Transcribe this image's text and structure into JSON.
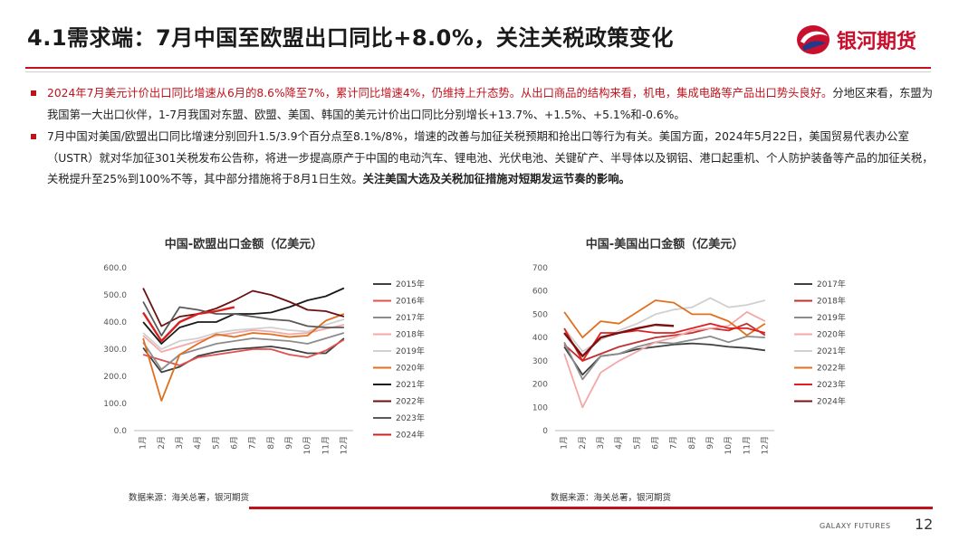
{
  "header": {
    "title": "4.1需求端：7月中国至欧盟出口同比+8.0%，关注关税政策变化",
    "logo_text": "银河期货"
  },
  "bullets": [
    {
      "parts": [
        {
          "text": "2024年7月美元计价出口同比增速从6月的8.6%降至7%，累计同比增速4%，仍维持上升态势。从出口商品的结构来看，机电，集成电路等产品出口势头良好。",
          "style": "red"
        },
        {
          "text": "分地区来看，东盟为我国第一大出口伙伴，1-7月我国对东盟、欧盟、美国、韩国的美元计价出口同比分别增长+13.7%、+1.5%、+5.1%和-0.6%。",
          "style": "normal"
        }
      ]
    },
    {
      "parts": [
        {
          "text": "7月中国对美国/欧盟出口同比增速分别回升1.5/3.9个百分点至8.1%/8%，增速的改善与加征关税预期和抢出口等行为有关。美国方面，2024年5月22日，美国贸易代表办公室（USTR）就对华加征301关税发布公告称，将进一步提高原产于中国的电动汽车、锂电池、光伏电池、关键矿产、半导体以及钢铝、港口起重机、个人防护装备等产品的加征关税，关税提升至25%到100%不等，其中部分措施将于8月1日生效。",
          "style": "normal"
        },
        {
          "text": "关注美国大选及关税加征措施对短期发运节奏的影响。",
          "style": "bold"
        }
      ]
    }
  ],
  "chart_data": [
    {
      "type": "line",
      "title": "中国-欧盟出口金额（亿美元）",
      "categories": [
        "1月",
        "2月",
        "3月",
        "4月",
        "5月",
        "6月",
        "7月",
        "8月",
        "9月",
        "10月",
        "11月",
        "12月"
      ],
      "ylim": [
        0,
        600
      ],
      "yticks": [
        "0.0",
        "100.0",
        "200.0",
        "300.0",
        "400.0",
        "500.0",
        "600.0"
      ],
      "legend_position": "right",
      "series": [
        {
          "name": "2015年",
          "color": "#404040",
          "values": [
            305,
            215,
            235,
            275,
            290,
            300,
            305,
            310,
            300,
            285,
            285,
            340
          ]
        },
        {
          "name": "2016年",
          "color": "#e05050",
          "values": [
            280,
            260,
            240,
            270,
            280,
            290,
            300,
            300,
            280,
            270,
            295,
            335
          ]
        },
        {
          "name": "2017年",
          "color": "#8c8c8c",
          "values": [
            325,
            225,
            280,
            300,
            320,
            330,
            340,
            335,
            330,
            320,
            340,
            360
          ]
        },
        {
          "name": "2018年",
          "color": "#f4a8a8",
          "values": [
            350,
            290,
            310,
            330,
            350,
            360,
            370,
            365,
            355,
            360,
            375,
            390
          ]
        },
        {
          "name": "2019年",
          "color": "#d0d0d0",
          "values": [
            360,
            300,
            330,
            340,
            360,
            370,
            375,
            380,
            370,
            365,
            390,
            410
          ]
        },
        {
          "name": "2020年",
          "color": "#e07020",
          "values": [
            340,
            110,
            280,
            320,
            355,
            345,
            360,
            355,
            345,
            350,
            405,
            430
          ]
        },
        {
          "name": "2021年",
          "color": "#1a1a1a",
          "values": [
            400,
            320,
            380,
            400,
            400,
            430,
            430,
            435,
            455,
            480,
            495,
            525
          ]
        },
        {
          "name": "2022年",
          "color": "#6b1010",
          "values": [
            525,
            385,
            420,
            430,
            450,
            480,
            515,
            500,
            475,
            445,
            440,
            420
          ]
        },
        {
          "name": "2023年",
          "color": "#5a5a5a",
          "values": [
            475,
            350,
            455,
            445,
            430,
            430,
            420,
            410,
            405,
            385,
            380,
            380
          ]
        },
        {
          "name": "2024年",
          "color": "#d62020",
          "values": [
            435,
            330,
            400,
            430,
            440,
            455,
            null,
            null,
            null,
            null,
            null,
            null
          ]
        }
      ]
    },
    {
      "type": "line",
      "title": "中国-美国出口金额（亿美元）",
      "categories": [
        "1月",
        "2月",
        "3月",
        "4月",
        "5月",
        "6月",
        "7月",
        "8月",
        "9月",
        "10月",
        "11月",
        "12月"
      ],
      "ylim": [
        0,
        700
      ],
      "yticks": [
        "0",
        "100",
        "200",
        "300",
        "400",
        "500",
        "600",
        "700"
      ],
      "legend_position": "right",
      "series": [
        {
          "name": "2017年",
          "color": "#404040",
          "values": [
            360,
            240,
            320,
            330,
            350,
            360,
            370,
            375,
            370,
            360,
            355,
            345
          ]
        },
        {
          "name": "2018年",
          "color": "#c03030",
          "values": [
            370,
            300,
            330,
            360,
            380,
            400,
            410,
            420,
            440,
            430,
            460,
            410
          ]
        },
        {
          "name": "2019年",
          "color": "#8c8c8c",
          "values": [
            380,
            220,
            320,
            330,
            360,
            380,
            375,
            390,
            405,
            380,
            405,
            400
          ]
        },
        {
          "name": "2020年",
          "color": "#f4a8a8",
          "values": [
            330,
            100,
            250,
            300,
            340,
            380,
            400,
            430,
            440,
            450,
            510,
            470
          ]
        },
        {
          "name": "2021年",
          "color": "#d0d0d0",
          "values": [
            440,
            340,
            390,
            430,
            460,
            500,
            520,
            530,
            570,
            530,
            540,
            560
          ]
        },
        {
          "name": "2022年",
          "color": "#e07020",
          "values": [
            510,
            400,
            470,
            460,
            510,
            560,
            550,
            500,
            500,
            470,
            410,
            460
          ]
        },
        {
          "name": "2023年",
          "color": "#e02020",
          "values": [
            440,
            300,
            420,
            420,
            430,
            420,
            420,
            440,
            460,
            440,
            440,
            420
          ]
        },
        {
          "name": "2024年",
          "color": "#7a1010",
          "values": [
            420,
            320,
            400,
            420,
            440,
            455,
            450,
            null,
            null,
            null,
            null,
            null
          ]
        }
      ]
    }
  ],
  "sources": {
    "left": "数据来源：海关总署，银河期货",
    "right": "数据来源：海关总署，银河期货"
  },
  "footer": {
    "company": "GALAXY FUTURES",
    "page_number": "12"
  }
}
